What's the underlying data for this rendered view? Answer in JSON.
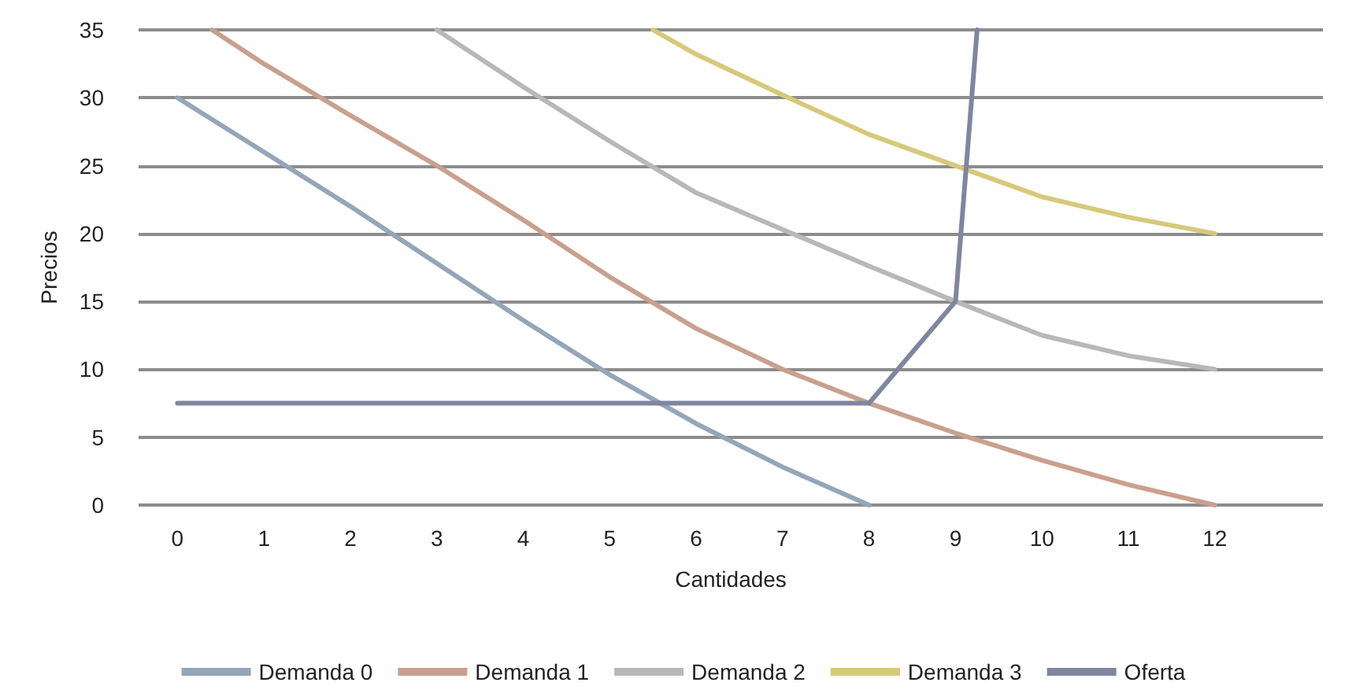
{
  "chart_data": {
    "type": "line",
    "xlabel": "Cantidades",
    "ylabel": "Precios",
    "xlim": [
      -0.45,
      13.25
    ],
    "xticks": [
      0,
      1,
      2,
      3,
      4,
      5,
      6,
      7,
      8,
      9,
      10,
      11,
      12
    ],
    "ylim": [
      0,
      35
    ],
    "yticks": [
      0,
      5,
      10,
      15,
      20,
      25,
      30,
      35
    ],
    "grid": "y",
    "legend": "bottom",
    "marker": "none",
    "line_style": "solid",
    "series": [
      {
        "name": "Demanda 0",
        "color": "#94a6b8",
        "x": [
          0,
          1,
          2,
          3,
          4,
          5,
          6,
          7,
          8
        ],
        "values": [
          30,
          26,
          22,
          17.8,
          13.6,
          9.6,
          6,
          2.8,
          0
        ]
      },
      {
        "name": "Demanda 1",
        "color": "#c9a08e",
        "x": [
          0.4,
          1,
          2,
          3,
          4,
          5,
          6,
          7,
          8,
          9,
          10,
          11,
          12
        ],
        "values": [
          35,
          32.5,
          28.7,
          25,
          21,
          16.8,
          13,
          10,
          7.5,
          5.3,
          3.3,
          1.5,
          0
        ]
      },
      {
        "name": "Demanda 2",
        "color": "#b8b8b8",
        "x": [
          3,
          4,
          5,
          6,
          7,
          8,
          9,
          10,
          11,
          12
        ],
        "values": [
          35,
          30.8,
          26.8,
          23,
          20.3,
          17.6,
          15,
          12.5,
          11,
          10
        ]
      },
      {
        "name": "Demanda 3",
        "color": "#d6c97a",
        "x": [
          5.5,
          6,
          7,
          8,
          9,
          10,
          11,
          12
        ],
        "values": [
          35,
          33.2,
          30.2,
          27.3,
          25,
          22.7,
          21.2,
          20
        ]
      },
      {
        "name": "Oferta",
        "color": "#7f86a0",
        "x": [
          0,
          8,
          9,
          9.25
        ],
        "values": [
          7.5,
          7.5,
          15,
          35
        ]
      }
    ]
  }
}
